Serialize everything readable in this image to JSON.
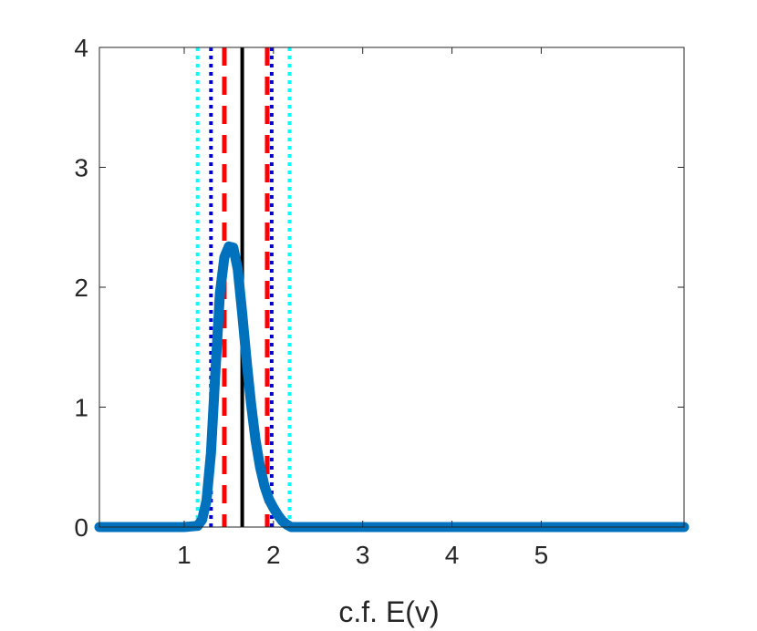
{
  "chart_data": {
    "type": "line",
    "title": "",
    "xlabel": "c.f. E(v)",
    "ylabel": "",
    "xlim": [
      0.05,
      6.6
    ],
    "ylim": [
      0,
      4
    ],
    "x_ticks": [
      1,
      2,
      3,
      4,
      5
    ],
    "x_tick_labels": [
      "1",
      "2",
      "3",
      "4",
      "5"
    ],
    "y_ticks": [
      0,
      1,
      2,
      3,
      4
    ],
    "y_tick_labels": [
      "0",
      "1",
      "2",
      "3",
      "4"
    ],
    "grid": false,
    "density": {
      "color": "#0072BD",
      "x": [
        0.05,
        0.5,
        1.0,
        1.15,
        1.2,
        1.25,
        1.3,
        1.35,
        1.4,
        1.45,
        1.5,
        1.55,
        1.6,
        1.65,
        1.7,
        1.75,
        1.8,
        1.85,
        1.9,
        1.95,
        2.0,
        2.05,
        2.1,
        2.15,
        2.2,
        2.3,
        3.0,
        4.0,
        5.0,
        6.0,
        6.6
      ],
      "y": [
        0,
        0,
        0,
        0.01,
        0.06,
        0.22,
        0.62,
        1.3,
        1.95,
        2.25,
        2.34,
        2.33,
        2.15,
        1.78,
        1.38,
        1.02,
        0.72,
        0.5,
        0.34,
        0.23,
        0.16,
        0.1,
        0.05,
        0.02,
        0,
        0,
        0,
        0,
        0,
        0,
        0
      ]
    },
    "vertical_lines": [
      {
        "x": 1.15,
        "style": "dotted",
        "color": "#00FFFF"
      },
      {
        "x": 1.3,
        "style": "dotted",
        "color": "#0000CC"
      },
      {
        "x": 1.45,
        "style": "dashed",
        "color": "#FF0000"
      },
      {
        "x": 1.65,
        "style": "solid",
        "color": "#000000"
      },
      {
        "x": 1.93,
        "style": "dashed",
        "color": "#FF0000"
      },
      {
        "x": 1.98,
        "style": "dotted",
        "color": "#0000CC"
      },
      {
        "x": 2.18,
        "style": "dotted",
        "color": "#00FFFF"
      }
    ]
  }
}
